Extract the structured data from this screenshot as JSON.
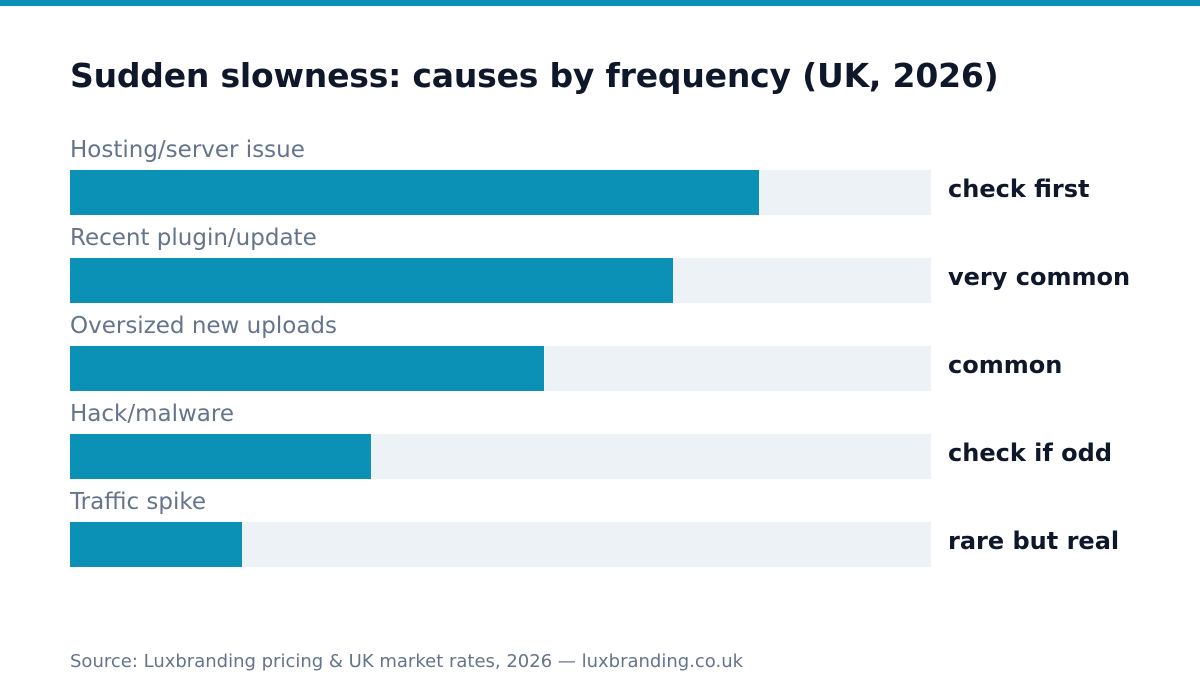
{
  "colors": {
    "accent": "#0a91b5",
    "track": "#edf2f7",
    "title": "#0f172a",
    "muted": "#64748b"
  },
  "chart_data": {
    "type": "bar",
    "orientation": "horizontal",
    "title": "Sudden slowness: causes by frequency (UK, 2026)",
    "xlabel": "",
    "ylabel": "",
    "xlim": [
      0,
      100
    ],
    "grid": false,
    "categories": [
      "Hosting/server issue",
      "Recent plugin/update",
      "Oversized new uploads",
      "Hack/malware",
      "Traffic spike"
    ],
    "values": [
      80,
      70,
      55,
      35,
      20
    ],
    "value_labels": [
      "check first",
      "very common",
      "common",
      "check if odd",
      "rare but real"
    ]
  },
  "footer": {
    "source": "Source: Luxbranding pricing & UK market rates, 2026 — luxbranding.co.uk"
  }
}
